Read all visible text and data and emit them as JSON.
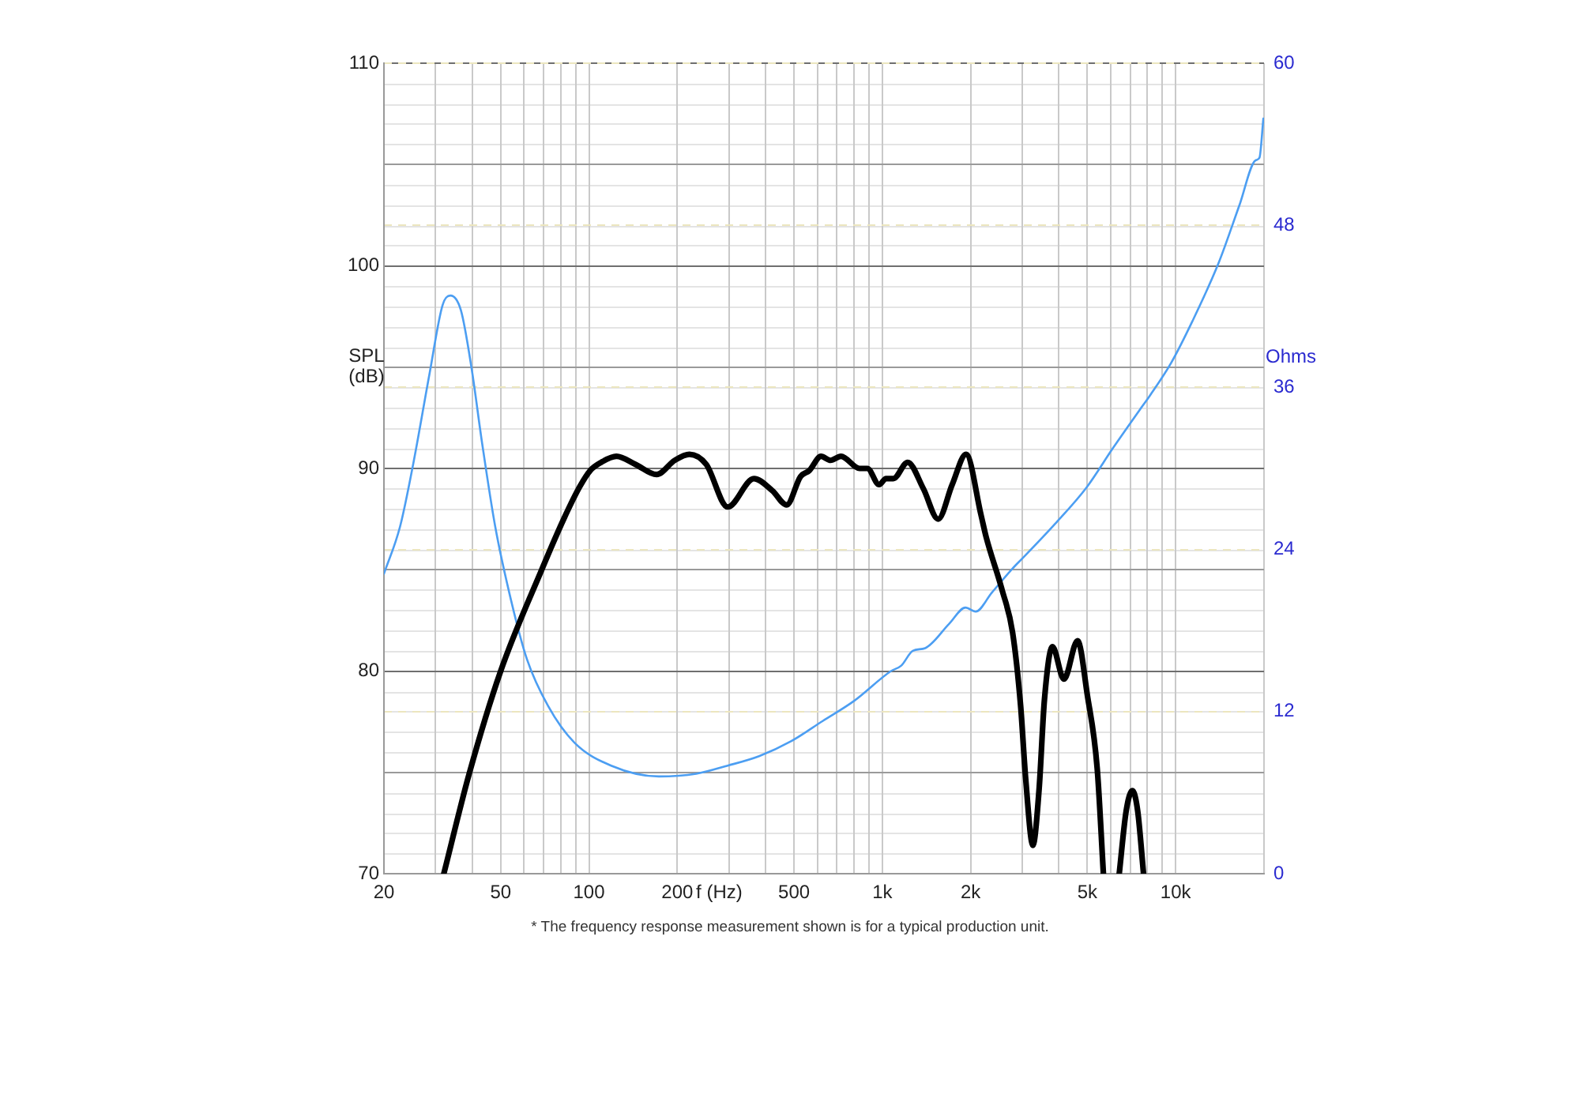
{
  "chart_data": {
    "type": "line",
    "xlabel": "f (Hz)",
    "ylabel": "SPL (dB)",
    "y2label": "Ohms",
    "annotations": [
      "* The frequency response measurement shown is for a typical production unit."
    ],
    "log": "x",
    "grid": true,
    "xlim": [
      20,
      20000
    ],
    "xticks": [
      20,
      {
        "value": 30,
        "label": null
      },
      {
        "value": 40,
        "label": null
      },
      50,
      {
        "value": 60,
        "label": null
      },
      {
        "value": 70,
        "label": null
      },
      {
        "value": 80,
        "label": null
      },
      {
        "value": 90,
        "label": null
      },
      100,
      200,
      {
        "value": 300,
        "label": null
      },
      {
        "value": 400,
        "label": null
      },
      500,
      {
        "value": 600,
        "label": null
      },
      {
        "value": 700,
        "label": null
      },
      {
        "value": 800,
        "label": null
      },
      {
        "value": 900,
        "label": null
      },
      {
        "value": 1000,
        "label": "1k"
      },
      {
        "value": 2000,
        "label": "2k"
      },
      {
        "value": 3000,
        "label": null
      },
      {
        "value": 4000,
        "label": null
      },
      {
        "value": 5000,
        "label": "5k"
      },
      {
        "value": 6000,
        "label": null
      },
      {
        "value": 7000,
        "label": null
      },
      {
        "value": 8000,
        "label": null
      },
      {
        "value": 9000,
        "label": null
      },
      {
        "value": 10000,
        "label": "10k"
      },
      {
        "value": 20000,
        "label": null
      }
    ],
    "ylim": [
      70,
      110
    ],
    "yticks": [
      70,
      {
        "value": 75,
        "label": null
      },
      80,
      {
        "value": 85,
        "label": null
      },
      90,
      {
        "value": 95,
        "label": null
      },
      100,
      {
        "value": 105,
        "label": null
      },
      110
    ],
    "y2lim": [
      0,
      60
    ],
    "y2ticks": [
      0,
      12,
      24,
      36,
      48,
      60
    ],
    "series": [
      {
        "color": "#000000",
        "x": [
          32,
          39,
          50,
          69,
          82,
          93,
          101,
          110,
          124,
          144,
          170,
          196,
          220,
          251,
          297,
          365,
          422,
          472,
          526,
          564,
          618,
          666,
          723,
          836,
          889,
          975,
          1030,
          1090,
          1220,
          1380,
          1550,
          1730,
          1930,
          2170,
          2260,
          2560,
          2780,
          2960,
          3080,
          3260,
          3420,
          3570,
          3800,
          4160,
          4630,
          5000,
          5400,
          5670,
          6000,
          6420,
          6780,
          7120,
          7420,
          7770
        ],
        "values": [
          70,
          74.9,
          80,
          85,
          87.5,
          89.1,
          89.9,
          90.3,
          90.6,
          90.2,
          89.7,
          90.4,
          90.7,
          90.2,
          88.1,
          89.5,
          88.9,
          88.2,
          89.6,
          89.9,
          90.6,
          90.4,
          90.6,
          90,
          90,
          89.2,
          89.5,
          89.5,
          90.3,
          89,
          87.5,
          89.2,
          90.7,
          87.7,
          86.6,
          84,
          81.9,
          78.3,
          74.7,
          71.4,
          74.1,
          78.6,
          81.2,
          79.6,
          81.5,
          78.8,
          75.2,
          70,
          null,
          70,
          73.1,
          74.1,
          73.1,
          70
        ]
      },
      {
        "color": "#4c9ef2",
        "axis": "y2",
        "x": [
          20,
          22.7,
          25.2,
          28.6,
          31.7,
          33.7,
          36.6,
          39.8,
          43.2,
          47.9,
          54.3,
          61.4,
          72.6,
          89.2,
          119,
          173,
          232,
          297,
          380,
          488,
          626,
          802,
          1070,
          1160,
          1270,
          1400,
          1690,
          1920,
          2080,
          2360,
          2780,
          3020,
          3880,
          4970,
          6110,
          7520,
          8170,
          9640,
          11400,
          14000,
          16500,
          18700,
          19300,
          19900
        ],
        "values": [
          22.2,
          25.7,
          30.4,
          37,
          42.1,
          42.8,
          41.7,
          37.4,
          31.9,
          25.7,
          20.2,
          15.9,
          12.4,
          9.7,
          8,
          7.2,
          7.4,
          8,
          8.7,
          9.8,
          11.3,
          12.8,
          15,
          15.4,
          16.5,
          16.7,
          18.5,
          19.7,
          19.4,
          20.8,
          22.6,
          23.4,
          25.9,
          28.6,
          31.5,
          34.3,
          35.4,
          37.8,
          40.9,
          45.2,
          49.5,
          52.8,
          53,
          55.9
        ]
      }
    ]
  }
}
